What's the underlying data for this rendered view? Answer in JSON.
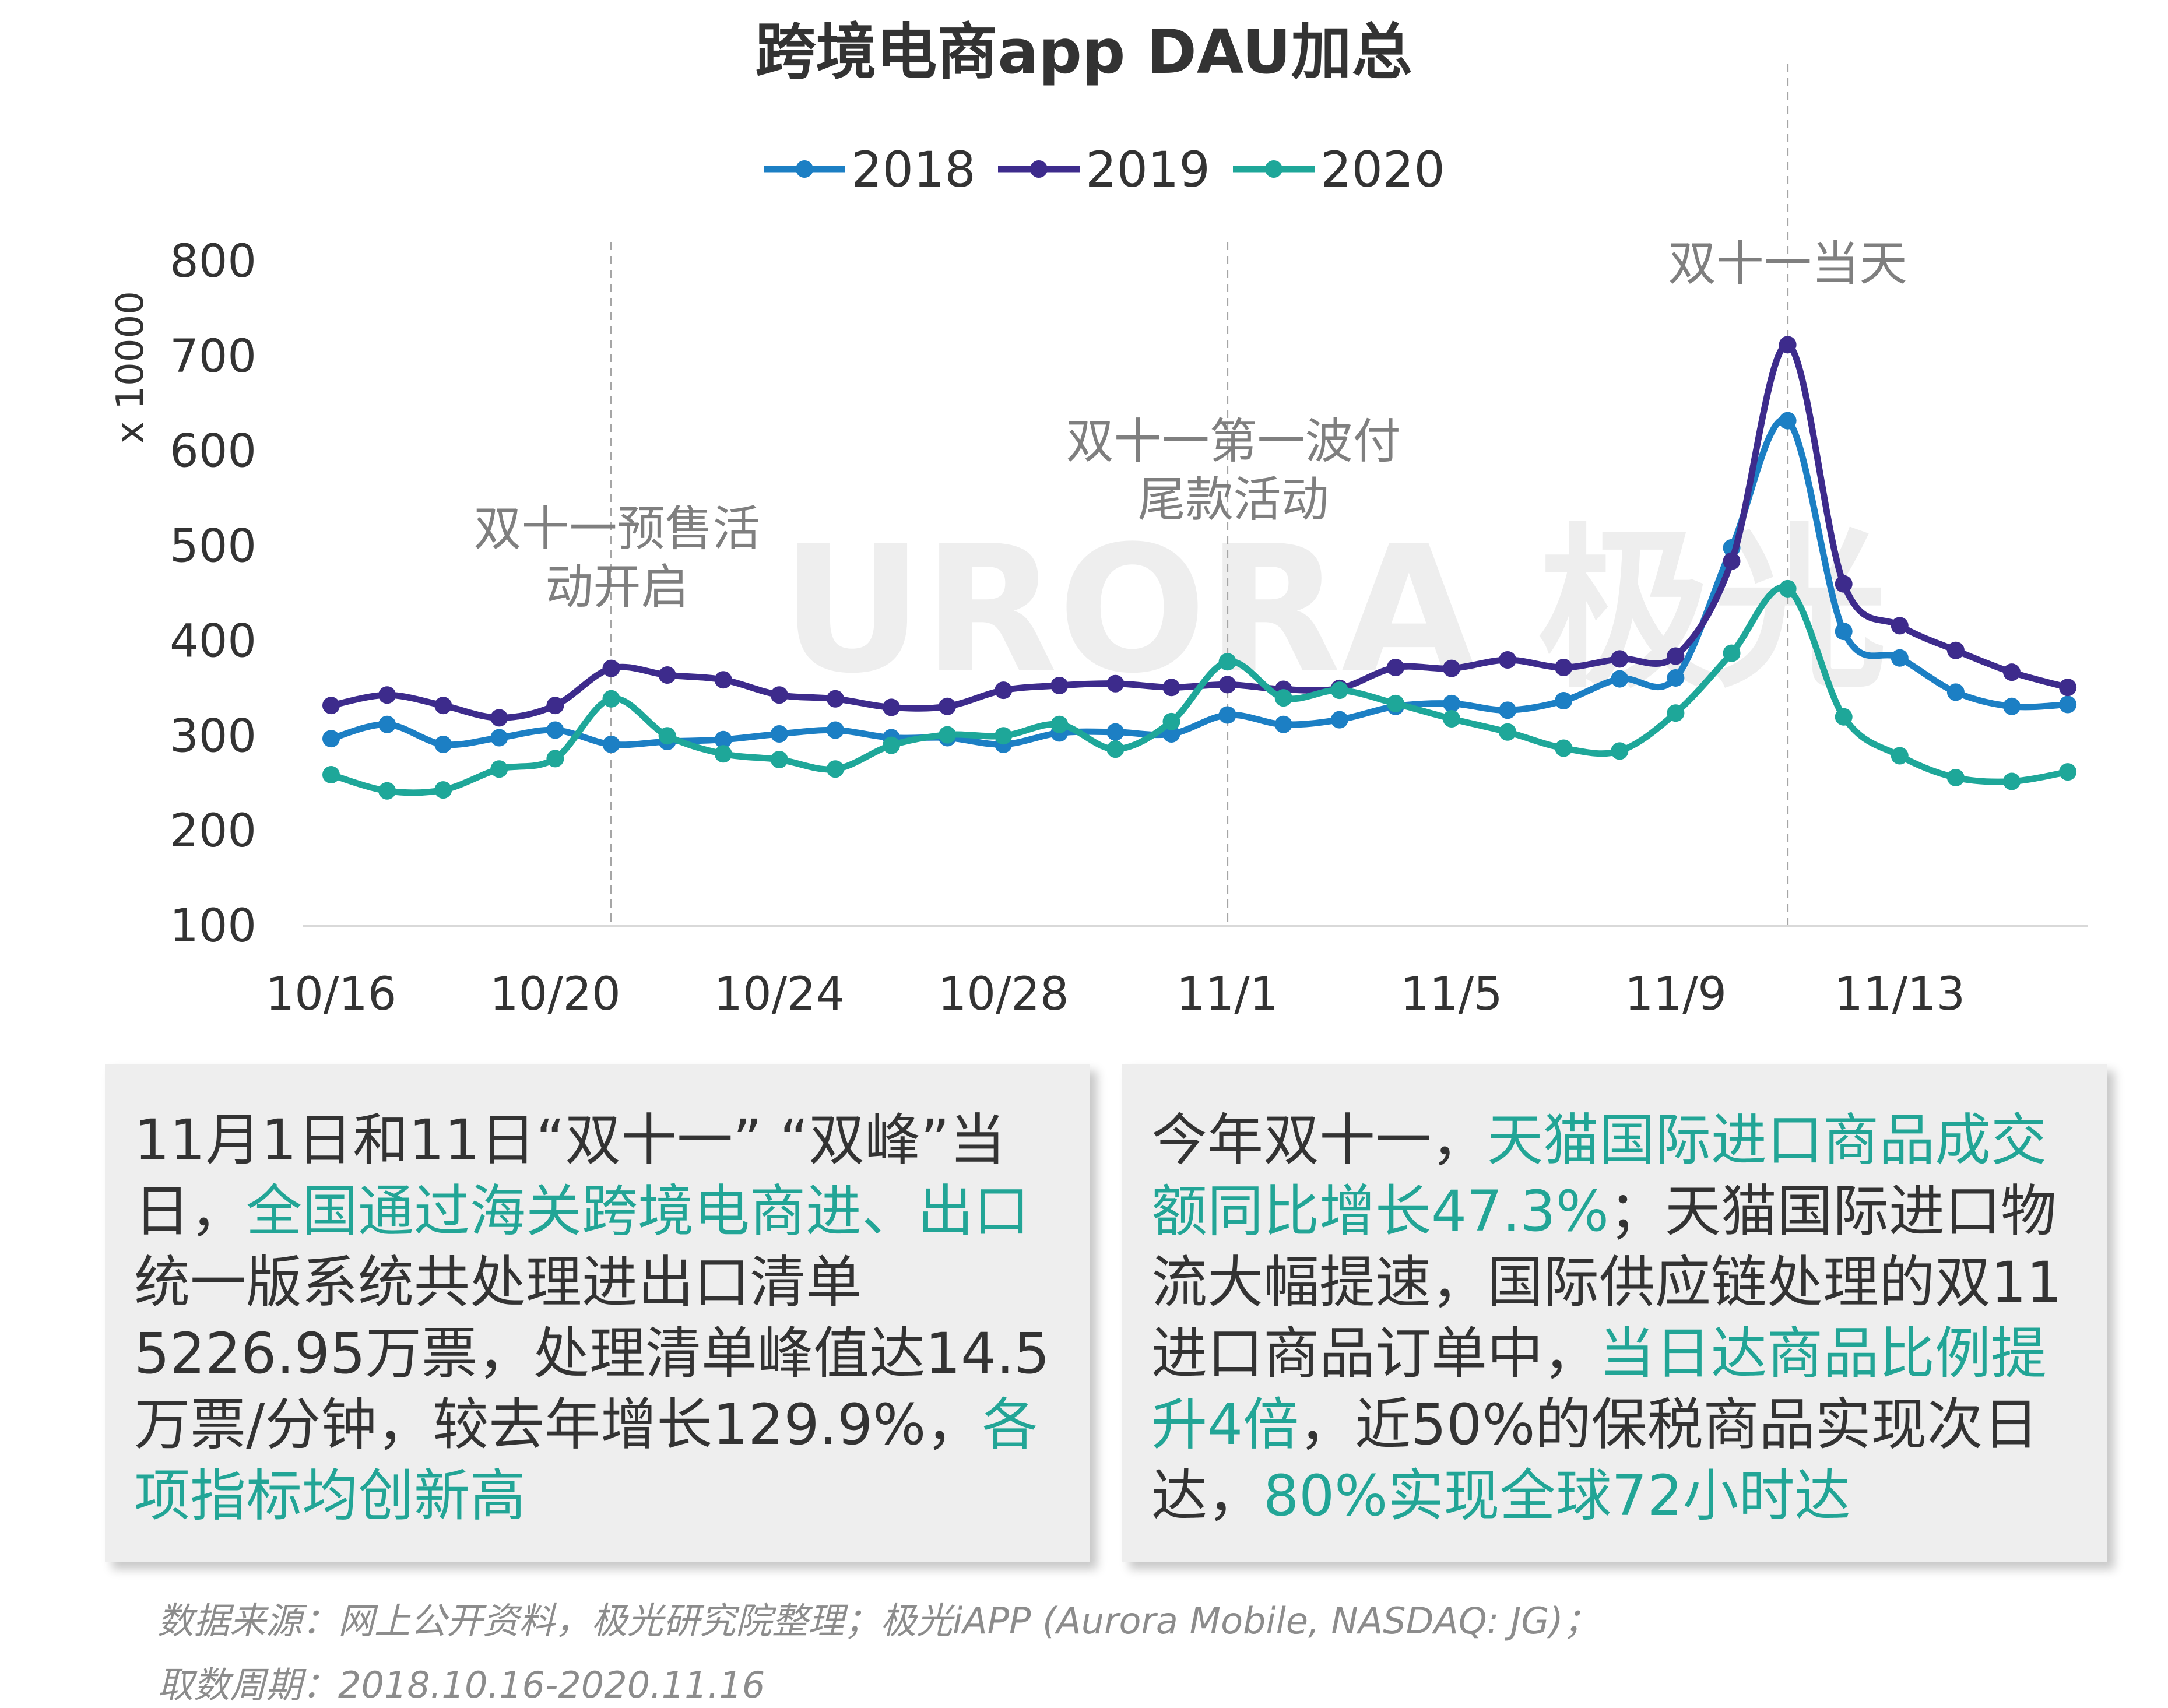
{
  "chart_data": {
    "type": "line",
    "title": "跨境电商app DAU加总",
    "ylabel": "x 10000",
    "ylim": [
      100,
      800
    ],
    "yticks": [
      100,
      200,
      300,
      400,
      500,
      600,
      700,
      800
    ],
    "x": [
      "10/16",
      "10/17",
      "10/18",
      "10/19",
      "10/20",
      "10/21",
      "10/22",
      "10/23",
      "10/24",
      "10/25",
      "10/26",
      "10/27",
      "10/28",
      "10/29",
      "10/30",
      "10/31",
      "11/1",
      "11/2",
      "11/3",
      "11/4",
      "11/5",
      "11/6",
      "11/7",
      "11/8",
      "11/9",
      "11/10",
      "11/11",
      "11/12",
      "11/13",
      "11/14",
      "11/15",
      "11/16"
    ],
    "xtick_labels": [
      "10/16",
      "10/20",
      "10/24",
      "10/28",
      "11/1",
      "11/5",
      "11/9",
      "11/13"
    ],
    "legend_position": "top",
    "grid": false,
    "series": [
      {
        "name": "2018",
        "color": "#1c7fc4",
        "values": [
          297,
          312,
          291,
          298,
          306,
          291,
          294,
          296,
          302,
          306,
          298,
          298,
          291,
          303,
          304,
          302,
          322,
          312,
          317,
          331,
          334,
          327,
          337,
          360,
          361,
          498,
          632,
          410,
          382,
          346,
          331,
          333
        ]
      },
      {
        "name": "2019",
        "color": "#3d2b8c",
        "values": [
          332,
          343,
          332,
          319,
          332,
          371,
          364,
          359,
          343,
          339,
          330,
          331,
          348,
          353,
          355,
          351,
          354,
          349,
          350,
          372,
          371,
          380,
          372,
          381,
          384,
          484,
          712,
          460,
          416,
          390,
          367,
          351
        ]
      },
      {
        "name": "2020",
        "color": "#1ea799",
        "values": [
          259,
          242,
          243,
          265,
          276,
          339,
          300,
          281,
          275,
          265,
          290,
          301,
          300,
          312,
          286,
          315,
          378,
          340,
          348,
          334,
          318,
          304,
          287,
          284,
          324,
          387,
          455,
          320,
          279,
          256,
          252,
          262
        ]
      }
    ],
    "annotations": [
      {
        "at": "10/21",
        "lines": [
          "双十一预售活",
          "动开启"
        ]
      },
      {
        "at": "11/1",
        "lines": [
          "双十一第一波付",
          "尾款活动"
        ]
      },
      {
        "at": "11/11",
        "lines": [
          "双十一当天"
        ]
      }
    ],
    "watermark": "URORA 极光"
  },
  "boxes": {
    "left": [
      {
        "text": "11月1日和11日“双十一” “双峰”当日，",
        "hl": false
      },
      {
        "text": "全国通过海关跨境电商进、出口",
        "hl": true
      },
      {
        "text": "统一版系统共处理进出口清单5226.95万票，处理清单峰值达14.5万票/分钟，较去年增长129.9%，",
        "hl": false
      },
      {
        "text": "各项指标均创新高",
        "hl": true
      }
    ],
    "right": [
      {
        "text": "今年双十一，",
        "hl": false
      },
      {
        "text": "天猫国际进口商品成交额同比增长47.3%",
        "hl": true
      },
      {
        "text": "；天猫国际进口物流大幅提速，国际供应链处理的双11进口商品订单中，",
        "hl": false
      },
      {
        "text": "当日达商品比例提升4倍",
        "hl": true
      },
      {
        "text": "，近50%的保税商品实现次日达，",
        "hl": false
      },
      {
        "text": "80%实现全球72小时达",
        "hl": true
      }
    ]
  },
  "source": {
    "line1": "数据来源：网上公开资料，极光研究院整理；极光iAPP (Aurora Mobile, NASDAQ: JG)；",
    "line2": "取数周期：2018.10.16-2020.11.16"
  }
}
